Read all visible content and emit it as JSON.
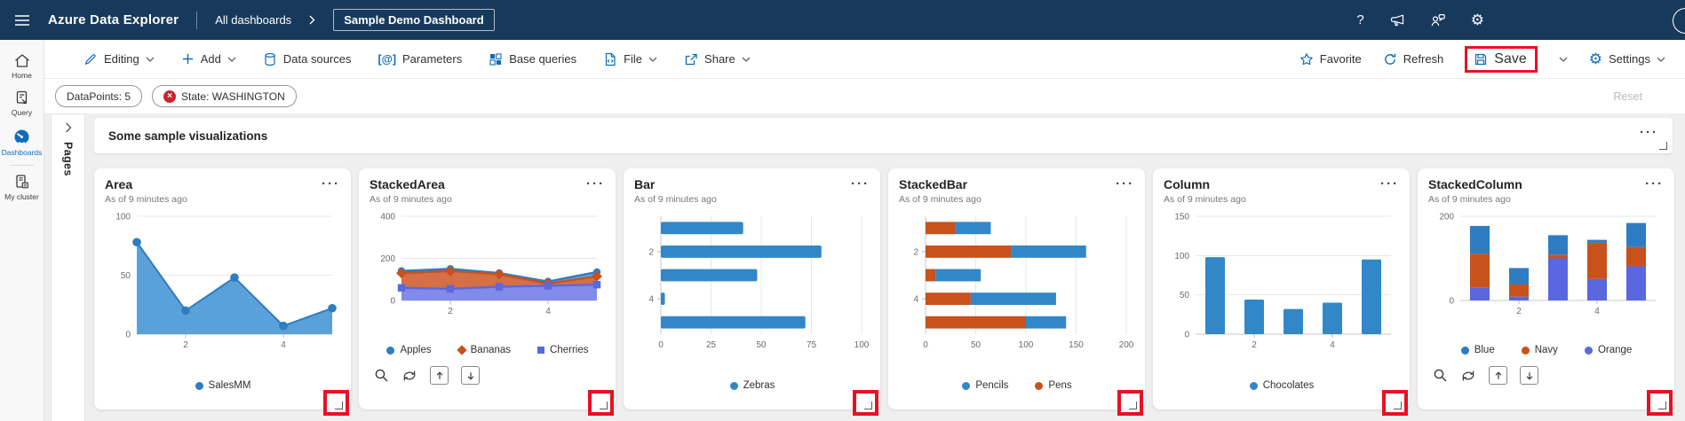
{
  "topnav": {
    "app_title": "Azure Data Explorer",
    "breadcrumb": "All dashboards",
    "current_page": "Sample Demo Dashboard",
    "help_icon": "?",
    "right_icons": [
      "help-icon",
      "megaphone-icon",
      "feedback-icon",
      "gear-icon",
      "avatar"
    ]
  },
  "toolbar": {
    "items": [
      {
        "label": "Editing",
        "icon": "pencil-icon",
        "chevron": true
      },
      {
        "label": "Add",
        "icon": "plus-icon",
        "chevron": true
      },
      {
        "label": "Data sources",
        "icon": "database-icon",
        "chevron": false
      },
      {
        "label": "Parameters",
        "icon": "at-brackets-icon",
        "chevron": false
      },
      {
        "label": "Base queries",
        "icon": "grid-icon",
        "chevron": false
      },
      {
        "label": "File",
        "icon": "file-code-icon",
        "chevron": true
      },
      {
        "label": "Share",
        "icon": "share-icon",
        "chevron": true
      }
    ],
    "right": [
      {
        "label": "Favorite",
        "icon": "star-icon"
      },
      {
        "label": "Refresh",
        "icon": "refresh-icon"
      },
      {
        "label": "Save",
        "icon": "save-icon",
        "highlighted": true
      },
      {
        "label": "Settings",
        "icon": "gear-icon",
        "chevron": true
      }
    ]
  },
  "filters": {
    "pills": [
      {
        "label": "DataPoints: 5",
        "removable": false
      },
      {
        "label": "State: WASHINGTON",
        "removable": true
      }
    ],
    "reset_label": "Reset"
  },
  "sidebar": {
    "items": [
      {
        "label": "Home",
        "icon": "home-icon",
        "active": false
      },
      {
        "label": "Query",
        "icon": "query-icon",
        "active": false
      },
      {
        "label": "Dashboards",
        "icon": "dashboards-icon",
        "active": true
      },
      {
        "label": "My cluster",
        "icon": "cluster-icon",
        "active": false
      }
    ]
  },
  "pages_panel": {
    "label": "Pages"
  },
  "section_header": {
    "title": "Some sample visualizations"
  },
  "annotations": {
    "highlight_color": "#e81123",
    "highlighted_elements": [
      "save-button",
      "tile-resize-handles"
    ]
  },
  "colors": {
    "topnav_bg": "#173a5c",
    "accent": "#0f6cbd",
    "chart_blue": "#2e7cc1",
    "chart_orange": "#c9511c",
    "chart_royal": "#5b67e0",
    "highlight_red": "#e81123"
  },
  "chart_data": [
    {
      "title": "Area",
      "subtitle": "As of 9 minutes ago",
      "type": "area",
      "compact": false,
      "categories": [
        1,
        2,
        3,
        4,
        5
      ],
      "cat_ticks": [
        2,
        4
      ],
      "val_ticks": [
        0,
        50,
        100
      ],
      "val_max": 100,
      "series": [
        {
          "name": "SalesMM",
          "marker": "circle",
          "color": "#2e7cc1",
          "fill": "#4f9ad6",
          "values": [
            78,
            20,
            48,
            7,
            22
          ]
        }
      ]
    },
    {
      "title": "StackedArea",
      "subtitle": "As of 9 minutes ago",
      "type": "stackedarea",
      "compact": true,
      "categories": [
        1,
        2,
        3,
        4,
        5
      ],
      "cat_ticks": [
        2,
        4
      ],
      "val_ticks": [
        0,
        200,
        400
      ],
      "val_max": 400,
      "series": [
        {
          "name": "Apples",
          "marker": "circle",
          "color": "#2e7cc1",
          "fill": "#58a0d9",
          "values": [
            10,
            10,
            5,
            10,
            20
          ]
        },
        {
          "name": "Bananas",
          "marker": "diamond",
          "color": "#c9511c",
          "fill": "#d2673c",
          "values": [
            70,
            85,
            60,
            10,
            40
          ]
        },
        {
          "name": "Cherries",
          "marker": "square",
          "color": "#5b67e0",
          "fill": "#7b85ea",
          "values": [
            60,
            55,
            65,
            70,
            75
          ]
        }
      ]
    },
    {
      "title": "Bar",
      "subtitle": "As of 9 minutes ago",
      "type": "bar",
      "compact": false,
      "categories": [
        1,
        2,
        3,
        4,
        5
      ],
      "cat_ticks": [
        2,
        4
      ],
      "val_ticks": [
        0,
        25,
        50,
        75,
        100
      ],
      "val_max": 100,
      "series": [
        {
          "name": "Zebras",
          "marker": "circle",
          "color": "#3287c9",
          "fill": "#3287c9",
          "values": [
            41,
            80,
            48,
            2,
            72
          ]
        }
      ]
    },
    {
      "title": "StackedBar",
      "subtitle": "As of 9 minutes ago",
      "type": "stackedbar",
      "compact": false,
      "categories": [
        1,
        2,
        3,
        4,
        5
      ],
      "cat_ticks": [
        2,
        4
      ],
      "val_ticks": [
        0,
        50,
        100,
        150,
        200
      ],
      "val_max": 200,
      "series": [
        {
          "name": "Pencils",
          "marker": "circle",
          "color": "#3287c9",
          "fill": "#3287c9",
          "values": [
            35,
            75,
            45,
            85,
            40
          ]
        },
        {
          "name": "Pens",
          "marker": "circle",
          "color": "#c9511c",
          "fill": "#c9511c",
          "values": [
            30,
            85,
            10,
            45,
            100
          ]
        }
      ]
    },
    {
      "title": "Column",
      "subtitle": "As of 9 minutes ago",
      "type": "column",
      "compact": false,
      "categories": [
        1,
        2,
        3,
        4,
        5
      ],
      "cat_ticks": [
        2,
        4
      ],
      "val_ticks": [
        0,
        50,
        100,
        150
      ],
      "val_max": 150,
      "series": [
        {
          "name": "Chocolates",
          "marker": "circle",
          "color": "#3287c9",
          "fill": "#3287c9",
          "values": [
            98,
            44,
            32,
            40,
            95
          ]
        }
      ]
    },
    {
      "title": "StackedColumn",
      "subtitle": "As of 9 minutes ago",
      "type": "stackedcolumn",
      "compact": true,
      "categories": [
        1,
        2,
        3,
        4,
        5
      ],
      "cat_ticks": [
        2,
        4
      ],
      "val_ticks": [
        0,
        200
      ],
      "val_max": 200,
      "series": [
        {
          "name": "Blue",
          "marker": "circle",
          "color": "#2e7cc1",
          "fill": "#2e7cc1",
          "values": [
            66,
            39,
            46,
            7,
            57
          ]
        },
        {
          "name": "Navy",
          "marker": "circle",
          "color": "#c9511c",
          "fill": "#c9511c",
          "values": [
            81,
            29,
            9,
            86,
            46
          ]
        },
        {
          "name": "Orange",
          "marker": "circle",
          "color": "#5b67e0",
          "fill": "#5b67e0",
          "values": [
            30,
            9,
            100,
            51,
            81
          ]
        }
      ]
    }
  ]
}
